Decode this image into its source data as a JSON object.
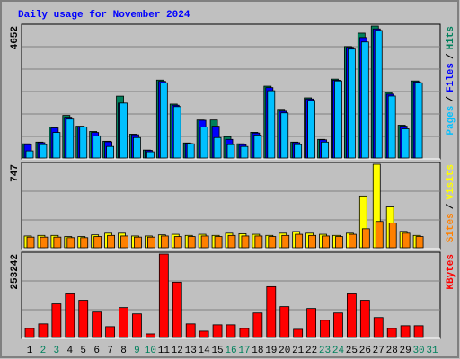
{
  "chart_data": [
    {
      "type": "bar",
      "title": "Daily usage for November 2024",
      "legend_separator": "/",
      "ylim": [
        0,
        4652
      ],
      "yticks": [
        4652
      ],
      "grid": true,
      "series": [
        {
          "name": "Hits",
          "color": "#00805c",
          "values": [
            500,
            560,
            1090,
            1500,
            1120,
            935,
            590,
            2180,
            840,
            280,
            2745,
            1900,
            530,
            1340,
            1340,
            750,
            500,
            905,
            2530,
            1685,
            560,
            2120,
            655,
            2780,
            3930,
            4400,
            4652,
            2310,
            1155,
            2715,
            null
          ]
        },
        {
          "name": "Files",
          "color": "#0000ff",
          "values": [
            470,
            540,
            1060,
            1435,
            1100,
            900,
            570,
            1935,
            820,
            270,
            2700,
            1860,
            510,
            1330,
            1120,
            655,
            470,
            880,
            2480,
            1650,
            540,
            2080,
            640,
            2740,
            3900,
            4245,
            4550,
            2250,
            1120,
            2680,
            null
          ]
        },
        {
          "name": "Pages",
          "color": "#00c0ff",
          "values": [
            250,
            470,
            900,
            1370,
            1090,
            780,
            405,
            1935,
            720,
            220,
            2650,
            1810,
            500,
            1090,
            720,
            470,
            405,
            810,
            2370,
            1590,
            470,
            2030,
            560,
            2715,
            3840,
            4090,
            4495,
            2185,
            1030,
            2650,
            null
          ]
        }
      ]
    },
    {
      "type": "bar",
      "ylim": [
        0,
        747
      ],
      "yticks": [
        747
      ],
      "grid": true,
      "series": [
        {
          "name": "Visits",
          "color": "#ffff00",
          "values": [
            105,
            110,
            110,
            100,
            100,
            115,
            130,
            130,
            105,
            105,
            115,
            120,
            110,
            120,
            110,
            130,
            125,
            120,
            110,
            130,
            145,
            130,
            120,
            110,
            130,
            463,
            747,
            365,
            146,
            110,
            null
          ]
        },
        {
          "name": "Sites",
          "color": "#ff8000",
          "values": [
            95,
            95,
            95,
            90,
            90,
            100,
            110,
            105,
            95,
            95,
            105,
            100,
            100,
            105,
            100,
            110,
            105,
            105,
            100,
            110,
            120,
            110,
            105,
            100,
            120,
            170,
            235,
            220,
            130,
            100,
            null
          ]
        }
      ]
    },
    {
      "type": "bar",
      "ylim": [
        0,
        253242
      ],
      "yticks": [
        253242
      ],
      "grid": true,
      "categories": [
        "1",
        "2",
        "3",
        "4",
        "5",
        "6",
        "7",
        "8",
        "9",
        "10",
        "11",
        "12",
        "13",
        "14",
        "15",
        "16",
        "17",
        "18",
        "19",
        "20",
        "21",
        "22",
        "23",
        "24",
        "25",
        "26",
        "27",
        "28",
        "29",
        "30",
        "31"
      ],
      "category_colors": [
        "#000000",
        "#00805c",
        "#00805c",
        "#000000",
        "#000000",
        "#000000",
        "#000000",
        "#000000",
        "#00805c",
        "#00805c",
        "#000000",
        "#000000",
        "#000000",
        "#000000",
        "#000000",
        "#00805c",
        "#00805c",
        "#000000",
        "#000000",
        "#000000",
        "#000000",
        "#000000",
        "#00805c",
        "#00805c",
        "#000000",
        "#000000",
        "#000000",
        "#000000",
        "#000000",
        "#00805c",
        "#00805c"
      ],
      "series": [
        {
          "name": "KBytes",
          "color": "#ff0000",
          "values": [
            27500,
            41300,
            101900,
            132100,
            112900,
            77100,
            33000,
            90800,
            71600,
            11000,
            253242,
            167900,
            41300,
            19300,
            38500,
            38500,
            27500,
            74300,
            154200,
            93600,
            24800,
            88100,
            52300,
            74300,
            132100,
            112900,
            60600,
            27500,
            35800,
            35800,
            null
          ]
        }
      ]
    }
  ]
}
